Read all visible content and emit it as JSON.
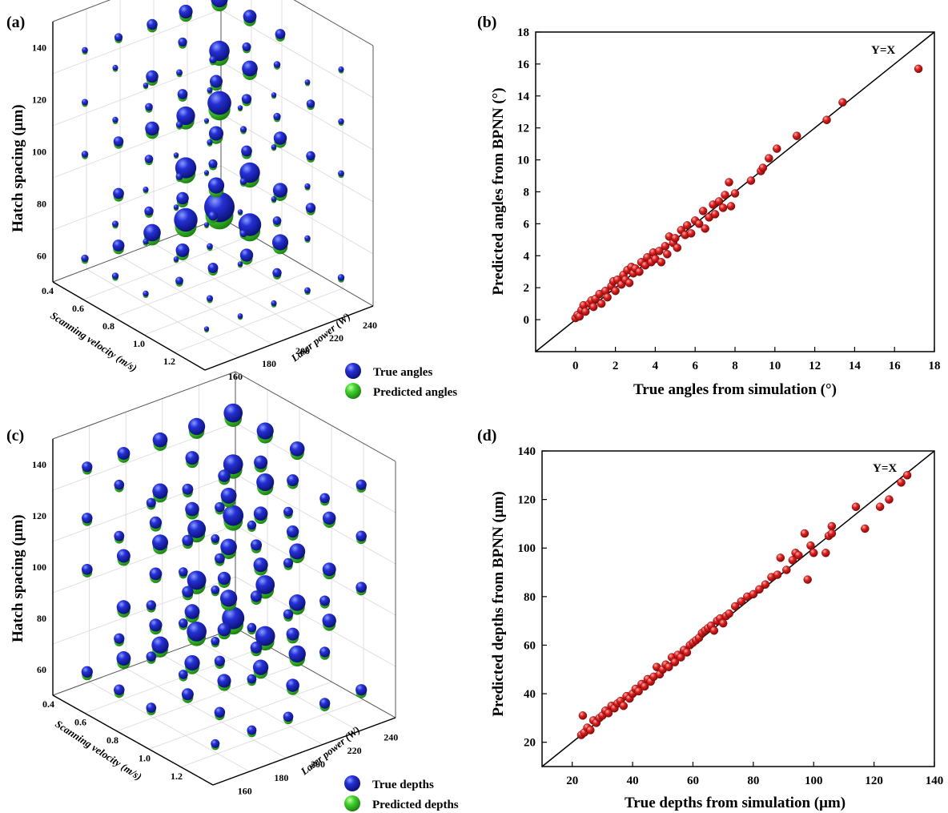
{
  "colors": {
    "true_sphere": "#1a22c4",
    "predicted_sphere": "#3fd42a",
    "scatter_point": "#d41a1a",
    "axis": "#000000",
    "grid3d": "#cfcfcf"
  },
  "chart_data": [
    {
      "panel": "(a)",
      "type": "scatter",
      "subtype": "3d-bubble",
      "xlabel": "Scanning velocity (m/s)",
      "ylabel": "Laser power (W)",
      "zlabel": "Hatch spacing (μm)",
      "x_ticks": [
        "0.4",
        "0.6",
        "0.8",
        "1.0",
        "1.2"
      ],
      "y_ticks": [
        "160",
        "180",
        "200",
        "220",
        "240"
      ],
      "z_ticks": [
        "60",
        "80",
        "100",
        "120",
        "140"
      ],
      "legend": [
        "True angles",
        "Predicted angles"
      ],
      "legend_position": "bottom-right"
    },
    {
      "panel": "(b)",
      "type": "scatter",
      "xlabel": "True angles from simulation (°)",
      "ylabel": "Predicted angles from BPNN (°)",
      "xlim": [
        -2,
        18
      ],
      "ylim": [
        -2,
        18
      ],
      "x_ticks": [
        0,
        2,
        4,
        6,
        8,
        10,
        12,
        14,
        16,
        18
      ],
      "y_ticks": [
        0,
        2,
        4,
        6,
        8,
        10,
        12,
        14,
        16,
        18
      ],
      "annotation": "Y=X",
      "reference_line": "y=x",
      "points": [
        [
          0.0,
          0.1
        ],
        [
          0.1,
          0.3
        ],
        [
          0.2,
          0.2
        ],
        [
          0.3,
          0.6
        ],
        [
          0.4,
          0.9
        ],
        [
          0.5,
          0.5
        ],
        [
          0.7,
          1.0
        ],
        [
          0.8,
          1.2
        ],
        [
          0.9,
          0.8
        ],
        [
          1.0,
          1.3
        ],
        [
          1.2,
          1.6
        ],
        [
          1.3,
          1.0
        ],
        [
          1.5,
          1.8
        ],
        [
          1.6,
          1.4
        ],
        [
          1.8,
          2.1
        ],
        [
          1.9,
          2.4
        ],
        [
          2.0,
          1.8
        ],
        [
          2.1,
          2.5
        ],
        [
          2.3,
          2.2
        ],
        [
          2.4,
          2.8
        ],
        [
          2.5,
          2.5
        ],
        [
          2.6,
          3.1
        ],
        [
          2.7,
          2.3
        ],
        [
          2.8,
          3.3
        ],
        [
          2.9,
          2.9
        ],
        [
          3.0,
          3.2
        ],
        [
          3.2,
          3.0
        ],
        [
          3.3,
          3.6
        ],
        [
          3.5,
          3.4
        ],
        [
          3.6,
          3.9
        ],
        [
          3.8,
          3.6
        ],
        [
          3.9,
          4.2
        ],
        [
          4.0,
          3.8
        ],
        [
          4.2,
          4.3
        ],
        [
          4.3,
          3.6
        ],
        [
          4.5,
          4.6
        ],
        [
          4.6,
          4.1
        ],
        [
          4.7,
          5.2
        ],
        [
          4.9,
          4.8
        ],
        [
          5.0,
          5.1
        ],
        [
          5.1,
          4.5
        ],
        [
          5.3,
          5.6
        ],
        [
          5.5,
          5.3
        ],
        [
          5.6,
          5.9
        ],
        [
          5.8,
          5.4
        ],
        [
          6.0,
          6.2
        ],
        [
          6.2,
          6.0
        ],
        [
          6.4,
          6.8
        ],
        [
          6.5,
          5.7
        ],
        [
          6.7,
          6.4
        ],
        [
          6.9,
          7.2
        ],
        [
          7.0,
          6.6
        ],
        [
          7.2,
          7.4
        ],
        [
          7.4,
          7.0
        ],
        [
          7.5,
          7.8
        ],
        [
          7.7,
          8.6
        ],
        [
          7.8,
          7.1
        ],
        [
          8.0,
          7.9
        ],
        [
          8.8,
          8.7
        ],
        [
          9.3,
          9.3
        ],
        [
          9.4,
          9.5
        ],
        [
          9.7,
          10.1
        ],
        [
          10.1,
          10.7
        ],
        [
          11.1,
          11.5
        ],
        [
          12.6,
          12.5
        ],
        [
          13.4,
          13.6
        ],
        [
          17.2,
          15.7
        ]
      ]
    },
    {
      "panel": "(c)",
      "type": "scatter",
      "subtype": "3d-bubble",
      "xlabel": "Scanning velocity (m/s)",
      "ylabel": "Laser power (W)",
      "zlabel": "Hatch spacing (μm)",
      "x_ticks": [
        "0.4",
        "0.6",
        "0.8",
        "1.0",
        "1.2"
      ],
      "y_ticks": [
        "160",
        "180",
        "200",
        "220",
        "240"
      ],
      "z_ticks": [
        "60",
        "80",
        "100",
        "120",
        "140"
      ],
      "legend": [
        "True depths",
        "Predicted depths"
      ],
      "legend_position": "bottom-right"
    },
    {
      "panel": "(d)",
      "type": "scatter",
      "xlabel": "True depths from simulation (μm)",
      "ylabel": "Predicted depths from BPNN (μm)",
      "xlim": [
        10,
        140
      ],
      "ylim": [
        10,
        140
      ],
      "x_ticks": [
        20,
        40,
        60,
        80,
        100,
        120,
        140
      ],
      "y_ticks": [
        20,
        40,
        60,
        80,
        100,
        120,
        140
      ],
      "annotation": "Y=X",
      "reference_line": "y=x",
      "points": [
        [
          23,
          23
        ],
        [
          23.5,
          31
        ],
        [
          24,
          24
        ],
        [
          25,
          26
        ],
        [
          26,
          25
        ],
        [
          27,
          29
        ],
        [
          28,
          28
        ],
        [
          29,
          30
        ],
        [
          30,
          31
        ],
        [
          31,
          33
        ],
        [
          32,
          32
        ],
        [
          33,
          35
        ],
        [
          34,
          34
        ],
        [
          35,
          36
        ],
        [
          36,
          37
        ],
        [
          37,
          35
        ],
        [
          38,
          39
        ],
        [
          39,
          38
        ],
        [
          40,
          40
        ],
        [
          41,
          42
        ],
        [
          42,
          41
        ],
        [
          43,
          44
        ],
        [
          44,
          43
        ],
        [
          45,
          46
        ],
        [
          46,
          45
        ],
        [
          47,
          47
        ],
        [
          48,
          51
        ],
        [
          49,
          48
        ],
        [
          50,
          50
        ],
        [
          51,
          52
        ],
        [
          52,
          51
        ],
        [
          53,
          55
        ],
        [
          54,
          53
        ],
        [
          55,
          56
        ],
        [
          56,
          55
        ],
        [
          57,
          58
        ],
        [
          58,
          57
        ],
        [
          59,
          60
        ],
        [
          60,
          61
        ],
        [
          61,
          62
        ],
        [
          62,
          63
        ],
        [
          63,
          65
        ],
        [
          64,
          66
        ],
        [
          65,
          67
        ],
        [
          66,
          68
        ],
        [
          67,
          66
        ],
        [
          68,
          70
        ],
        [
          69,
          71
        ],
        [
          70,
          69
        ],
        [
          71,
          72
        ],
        [
          72,
          73
        ],
        [
          74,
          76
        ],
        [
          76,
          78
        ],
        [
          78,
          80
        ],
        [
          80,
          81
        ],
        [
          82,
          83
        ],
        [
          84,
          85
        ],
        [
          86,
          88
        ],
        [
          88,
          89
        ],
        [
          89,
          96
        ],
        [
          91,
          91
        ],
        [
          93,
          95
        ],
        [
          94,
          98
        ],
        [
          95,
          97
        ],
        [
          97,
          106
        ],
        [
          98,
          87
        ],
        [
          99,
          101
        ],
        [
          100,
          98
        ],
        [
          104,
          98
        ],
        [
          105,
          105
        ],
        [
          106,
          109
        ],
        [
          106,
          106
        ],
        [
          114,
          117
        ],
        [
          117,
          108
        ],
        [
          122,
          117
        ],
        [
          125,
          120
        ],
        [
          129,
          127
        ],
        [
          131,
          130
        ]
      ]
    }
  ]
}
